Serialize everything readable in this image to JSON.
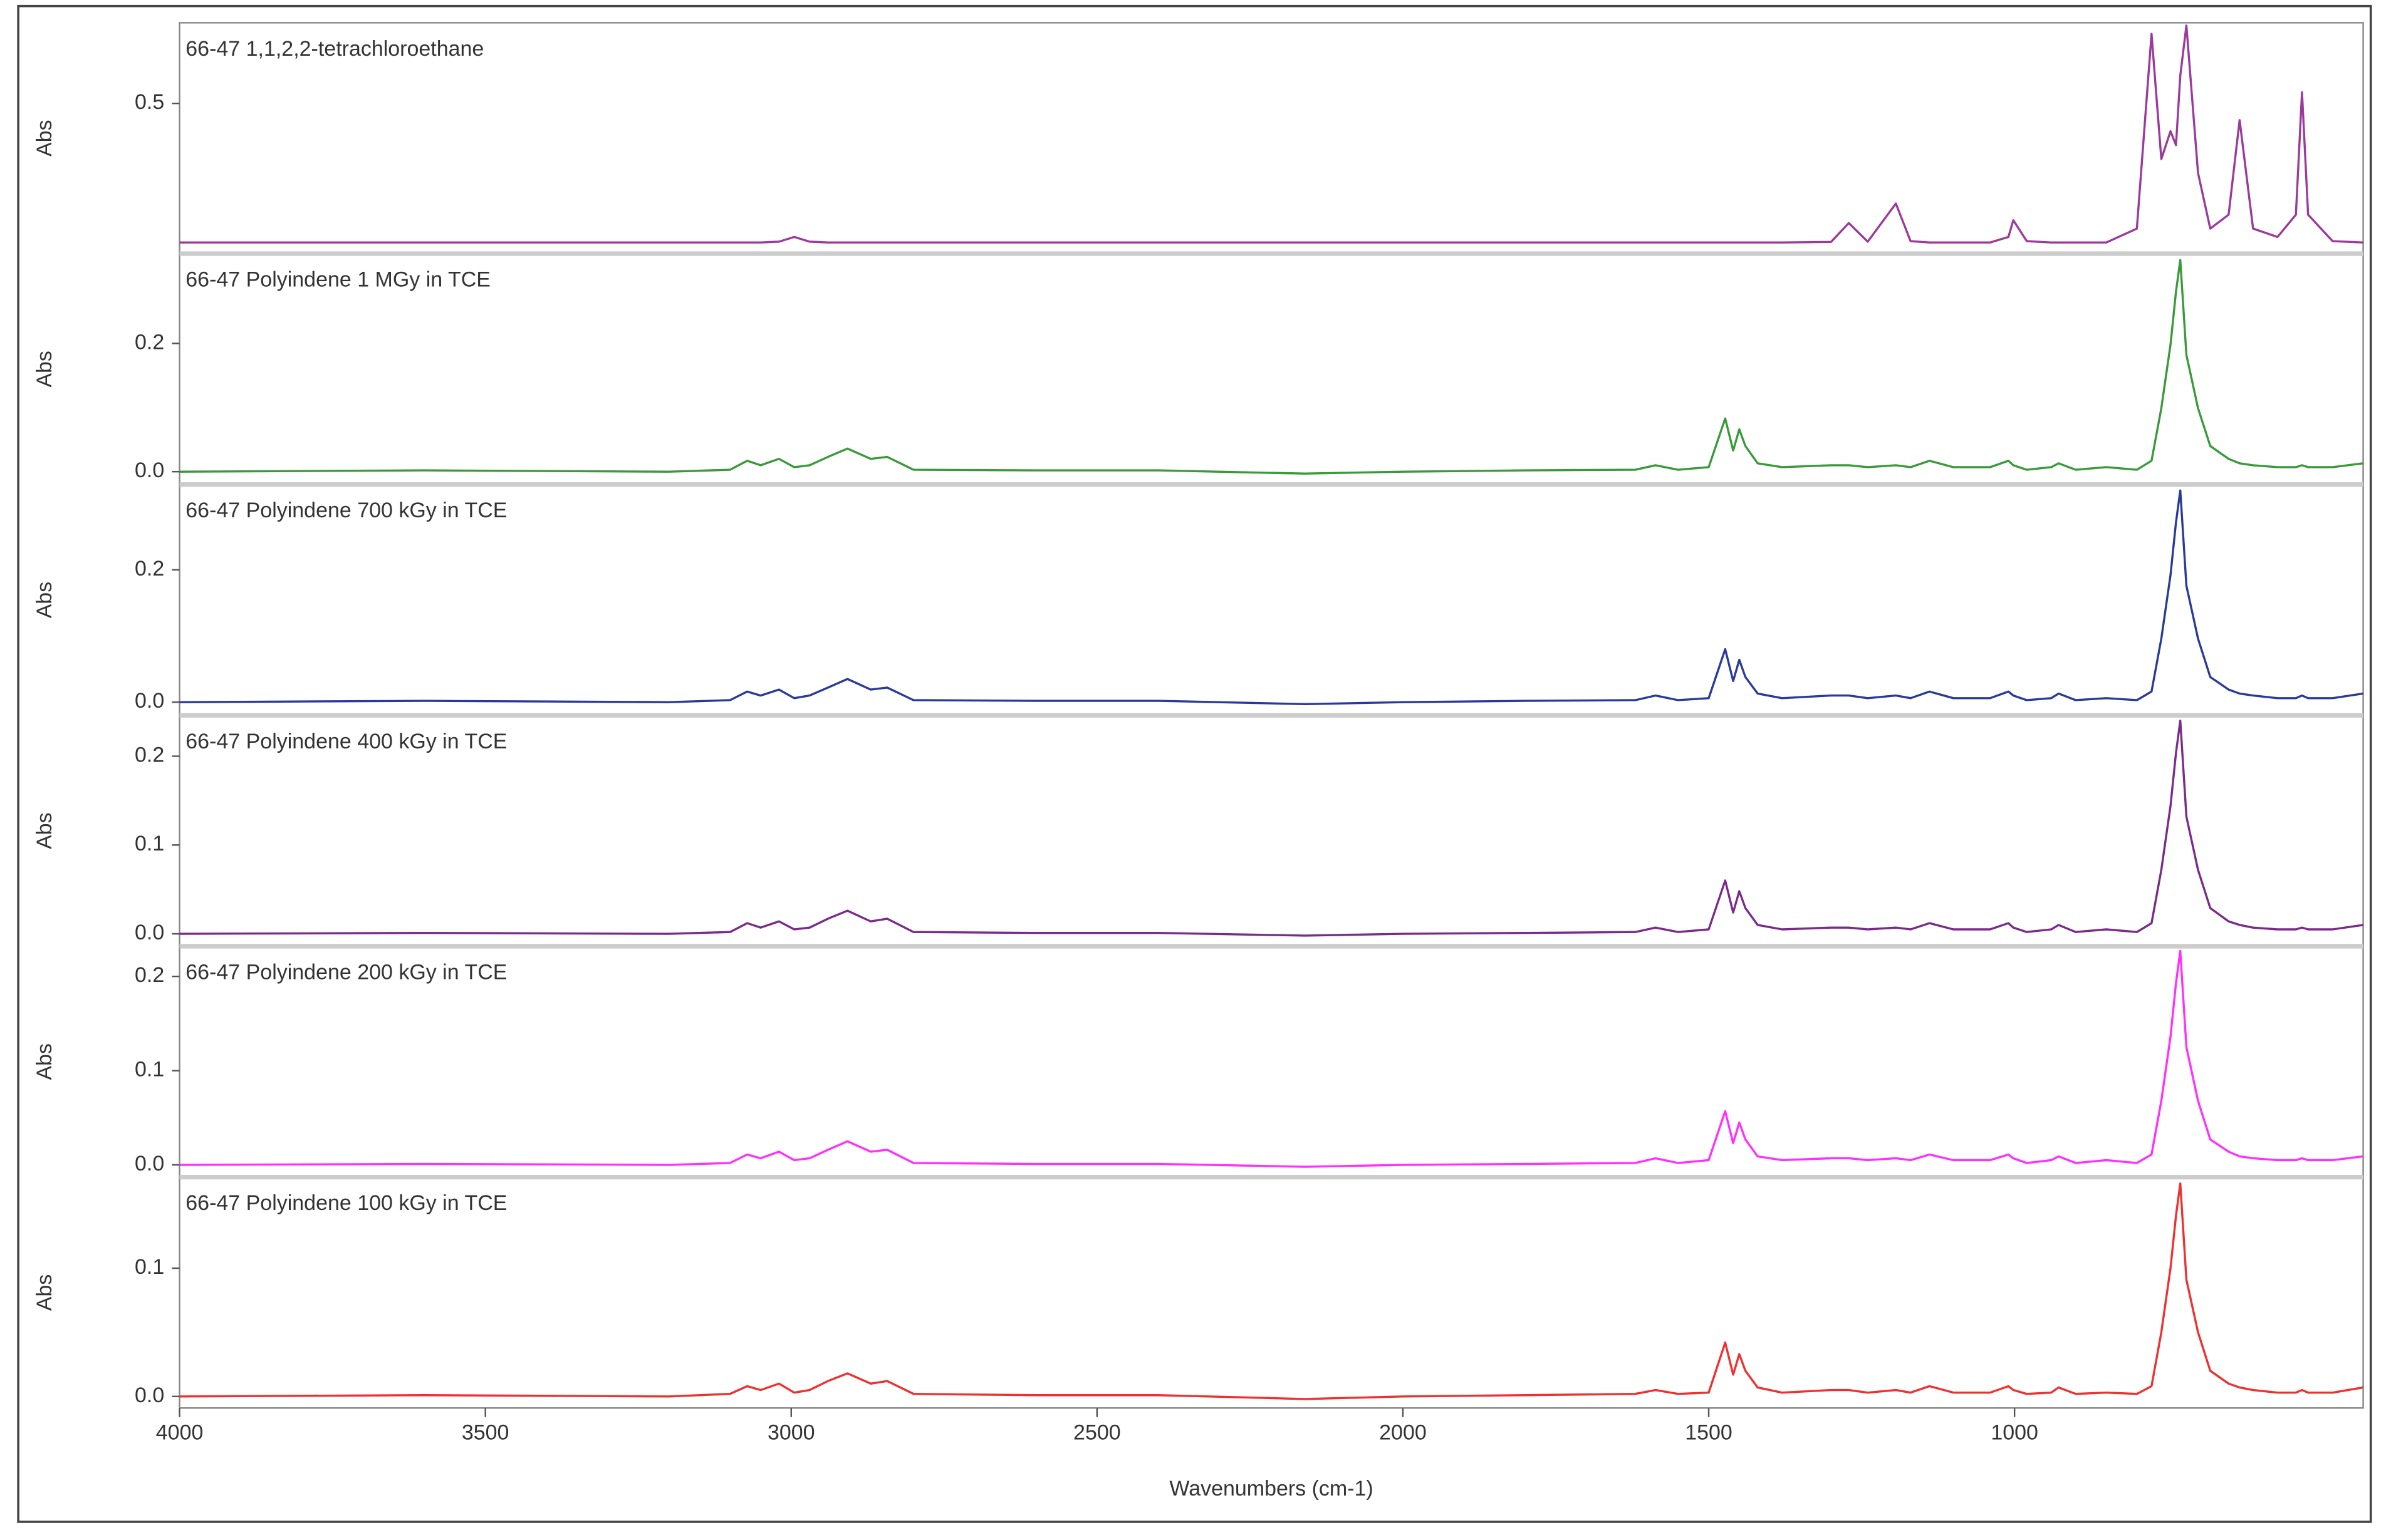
{
  "chart_data": [
    {
      "type": "line",
      "title": "66-47 1,1,2,2-tetrachloroethane",
      "ylabel": "Abs",
      "color": "#9b3a9b",
      "xlim": [
        4000,
        430
      ],
      "ylim": [
        -0.04,
        0.79
      ],
      "yticks": [
        0.5
      ],
      "x": [
        4000,
        3600,
        3200,
        3100,
        3072,
        3050,
        3020,
        2995,
        2970,
        2940,
        2908,
        2870,
        2843,
        2800,
        2600,
        2400,
        2160,
        2000,
        1800,
        1620,
        1587,
        1550,
        1500,
        1473,
        1460,
        1450,
        1440,
        1420,
        1380,
        1300,
        1271,
        1240,
        1194,
        1170,
        1139,
        1100,
        1040,
        1010,
        1002,
        980,
        940,
        928,
        900,
        850,
        800,
        776,
        760,
        745,
        736,
        729,
        719,
        700,
        680,
        650,
        632,
        610,
        570,
        540,
        530,
        520,
        480,
        430
      ],
      "values": [
        0,
        0,
        0,
        0,
        0,
        0,
        0.003,
        0.02,
        0.003,
        0,
        0,
        0,
        0,
        0,
        0,
        0,
        0,
        0,
        0,
        0,
        0,
        0,
        0,
        0,
        0,
        0,
        0,
        0,
        0,
        0.002,
        0.07,
        0.003,
        0.14,
        0.005,
        0,
        0,
        0,
        0.02,
        0.08,
        0.005,
        0,
        0,
        0,
        0,
        0.05,
        0.75,
        0.3,
        0.4,
        0.35,
        0.6,
        0.78,
        0.25,
        0.05,
        0.1,
        0.44,
        0.05,
        0.02,
        0.1,
        0.54,
        0.1,
        0.005,
        0
      ]
    },
    {
      "type": "line",
      "title": "66-47 Polyindene 1 MGy in TCE",
      "ylabel": "Abs",
      "color": "#3a9a3a",
      "xlim": [
        4000,
        430
      ],
      "ylim": [
        -0.02,
        0.34
      ],
      "yticks": [
        {
          "value": 0,
          "label": "0.0"
        },
        0.2
      ],
      "x": [
        4000,
        3600,
        3200,
        3100,
        3072,
        3050,
        3020,
        2995,
        2970,
        2940,
        2908,
        2870,
        2843,
        2800,
        2600,
        2400,
        2160,
        2000,
        1800,
        1620,
        1587,
        1550,
        1500,
        1473,
        1460,
        1450,
        1440,
        1420,
        1380,
        1300,
        1271,
        1240,
        1194,
        1170,
        1139,
        1100,
        1040,
        1010,
        1002,
        980,
        940,
        928,
        900,
        850,
        800,
        776,
        760,
        745,
        736,
        729,
        719,
        700,
        680,
        650,
        632,
        610,
        570,
        540,
        530,
        520,
        480,
        430
      ],
      "values": [
        0,
        0.002,
        0,
        0.003,
        0.017,
        0.01,
        0.02,
        0.007,
        0.01,
        0.023,
        0.036,
        0.02,
        0.023,
        0.003,
        0.002,
        0.002,
        -0.003,
        0,
        0.002,
        0.003,
        0.01,
        0.003,
        0.007,
        0.083,
        0.033,
        0.066,
        0.04,
        0.013,
        0.007,
        0.01,
        0.01,
        0.007,
        0.01,
        0.007,
        0.017,
        0.007,
        0.007,
        0.017,
        0.01,
        0.003,
        0.007,
        0.013,
        0.003,
        0.007,
        0.003,
        0.017,
        0.099,
        0.198,
        0.281,
        0.33,
        0.182,
        0.099,
        0.04,
        0.02,
        0.013,
        0.01,
        0.007,
        0.007,
        0.01,
        0.007,
        0.007,
        0.013
      ]
    },
    {
      "type": "line",
      "title": "66-47 Polyindene 700 kGy in TCE",
      "ylabel": "Abs",
      "color": "#2a3a9a",
      "xlim": [
        4000,
        430
      ],
      "ylim": [
        -0.02,
        0.329
      ],
      "yticks": [
        {
          "value": 0,
          "label": "0.0"
        },
        0.2
      ],
      "x": [
        4000,
        3600,
        3200,
        3100,
        3072,
        3050,
        3020,
        2995,
        2970,
        2940,
        2908,
        2870,
        2843,
        2800,
        2600,
        2400,
        2160,
        2000,
        1800,
        1620,
        1587,
        1550,
        1500,
        1473,
        1460,
        1450,
        1440,
        1420,
        1380,
        1300,
        1271,
        1240,
        1194,
        1170,
        1139,
        1100,
        1040,
        1010,
        1002,
        980,
        940,
        928,
        900,
        850,
        800,
        776,
        760,
        745,
        736,
        729,
        719,
        700,
        680,
        650,
        632,
        610,
        570,
        540,
        530,
        520,
        480,
        430
      ],
      "values": [
        0,
        0.002,
        0,
        0.003,
        0.016,
        0.01,
        0.019,
        0.006,
        0.01,
        0.022,
        0.035,
        0.019,
        0.022,
        0.003,
        0.002,
        0.002,
        -0.003,
        0,
        0.002,
        0.003,
        0.01,
        0.003,
        0.006,
        0.08,
        0.032,
        0.064,
        0.038,
        0.013,
        0.006,
        0.01,
        0.01,
        0.006,
        0.01,
        0.006,
        0.016,
        0.006,
        0.006,
        0.016,
        0.01,
        0.003,
        0.006,
        0.013,
        0.003,
        0.006,
        0.003,
        0.016,
        0.096,
        0.192,
        0.272,
        0.32,
        0.176,
        0.096,
        0.038,
        0.019,
        0.013,
        0.01,
        0.006,
        0.006,
        0.01,
        0.006,
        0.006,
        0.013
      ]
    },
    {
      "type": "line",
      "title": "66-47 Polyindene 400 kGy in TCE",
      "ylabel": "Abs",
      "color": "#7a2a8a",
      "xlim": [
        4000,
        430
      ],
      "ylim": [
        -0.014,
        0.246
      ],
      "yticks": [
        {
          "value": 0,
          "label": "0.0"
        },
        0.1,
        0.2
      ],
      "x": [
        4000,
        3600,
        3200,
        3100,
        3072,
        3050,
        3020,
        2995,
        2970,
        2940,
        2908,
        2870,
        2843,
        2800,
        2600,
        2400,
        2160,
        2000,
        1800,
        1620,
        1587,
        1550,
        1500,
        1473,
        1460,
        1450,
        1440,
        1420,
        1380,
        1300,
        1271,
        1240,
        1194,
        1170,
        1139,
        1100,
        1040,
        1010,
        1002,
        980,
        940,
        928,
        900,
        850,
        800,
        776,
        760,
        745,
        736,
        729,
        719,
        700,
        680,
        650,
        632,
        610,
        570,
        540,
        530,
        520,
        480,
        430
      ],
      "values": [
        0,
        0.001,
        0,
        0.002,
        0.012,
        0.007,
        0.014,
        0.005,
        0.007,
        0.017,
        0.026,
        0.014,
        0.017,
        0.002,
        0.001,
        0.001,
        -0.002,
        0,
        0.001,
        0.002,
        0.007,
        0.002,
        0.005,
        0.06,
        0.024,
        0.048,
        0.029,
        0.01,
        0.005,
        0.007,
        0.007,
        0.005,
        0.007,
        0.005,
        0.012,
        0.005,
        0.005,
        0.012,
        0.007,
        0.002,
        0.005,
        0.01,
        0.002,
        0.005,
        0.002,
        0.012,
        0.072,
        0.144,
        0.204,
        0.24,
        0.132,
        0.072,
        0.029,
        0.014,
        0.01,
        0.007,
        0.005,
        0.005,
        0.007,
        0.005,
        0.005,
        0.01
      ]
    },
    {
      "type": "line",
      "title": "66-47 Polyindene 200 kGy in TCE",
      "ylabel": "Abs",
      "color": "#ff30ff",
      "xlim": [
        4000,
        430
      ],
      "ylim": [
        -0.013,
        0.232
      ],
      "yticks": [
        {
          "value": 0,
          "label": "0.0"
        },
        0.1,
        0.2
      ],
      "x": [
        4000,
        3600,
        3200,
        3100,
        3072,
        3050,
        3020,
        2995,
        2970,
        2940,
        2908,
        2870,
        2843,
        2800,
        2600,
        2400,
        2160,
        2000,
        1800,
        1620,
        1587,
        1550,
        1500,
        1473,
        1460,
        1450,
        1440,
        1420,
        1380,
        1300,
        1271,
        1240,
        1194,
        1170,
        1139,
        1100,
        1040,
        1010,
        1002,
        980,
        940,
        928,
        900,
        850,
        800,
        776,
        760,
        745,
        736,
        729,
        719,
        700,
        680,
        650,
        632,
        610,
        570,
        540,
        530,
        520,
        480,
        430
      ],
      "values": [
        0,
        0.001,
        0,
        0.002,
        0.011,
        0.007,
        0.014,
        0.005,
        0.007,
        0.016,
        0.025,
        0.014,
        0.016,
        0.002,
        0.001,
        0.001,
        -0.002,
        0,
        0.001,
        0.002,
        0.007,
        0.002,
        0.005,
        0.057,
        0.023,
        0.045,
        0.027,
        0.009,
        0.005,
        0.007,
        0.007,
        0.005,
        0.007,
        0.005,
        0.011,
        0.005,
        0.005,
        0.011,
        0.007,
        0.002,
        0.005,
        0.009,
        0.002,
        0.005,
        0.002,
        0.011,
        0.068,
        0.136,
        0.193,
        0.227,
        0.125,
        0.068,
        0.027,
        0.014,
        0.009,
        0.007,
        0.005,
        0.005,
        0.007,
        0.005,
        0.005,
        0.009
      ]
    },
    {
      "type": "line",
      "title": "66-47 Polyindene 100 kGy in TCE",
      "ylabel": "Abs",
      "xlabel": "Wavenumbers (cm-1)",
      "color": "#f03030",
      "xlim": [
        4000,
        430
      ],
      "xticks": [
        4000,
        3500,
        3000,
        2500,
        2000,
        1500,
        1000
      ],
      "ylim": [
        -0.009,
        0.171
      ],
      "yticks": [
        {
          "value": 0,
          "label": "0.0"
        },
        0.1
      ],
      "x": [
        4000,
        3600,
        3200,
        3100,
        3072,
        3050,
        3020,
        2995,
        2970,
        2940,
        2908,
        2870,
        2843,
        2800,
        2600,
        2400,
        2160,
        2000,
        1800,
        1620,
        1587,
        1550,
        1500,
        1473,
        1460,
        1450,
        1440,
        1420,
        1380,
        1300,
        1271,
        1240,
        1194,
        1170,
        1139,
        1100,
        1040,
        1010,
        1002,
        980,
        940,
        928,
        900,
        850,
        800,
        776,
        760,
        745,
        736,
        729,
        719,
        700,
        680,
        650,
        632,
        610,
        570,
        540,
        530,
        520,
        480,
        430
      ],
      "values": [
        0,
        0.001,
        0,
        0.002,
        0.008,
        0.005,
        0.01,
        0.003,
        0.005,
        0.012,
        0.018,
        0.01,
        0.012,
        0.002,
        0.001,
        0.001,
        -0.002,
        0,
        0.001,
        0.002,
        0.005,
        0.002,
        0.003,
        0.042,
        0.017,
        0.033,
        0.02,
        0.007,
        0.003,
        0.005,
        0.005,
        0.003,
        0.005,
        0.003,
        0.008,
        0.003,
        0.003,
        0.008,
        0.005,
        0.002,
        0.003,
        0.007,
        0.002,
        0.003,
        0.002,
        0.008,
        0.05,
        0.1,
        0.141,
        0.166,
        0.091,
        0.05,
        0.02,
        0.01,
        0.007,
        0.005,
        0.003,
        0.003,
        0.005,
        0.003,
        0.003,
        0.007
      ]
    }
  ]
}
